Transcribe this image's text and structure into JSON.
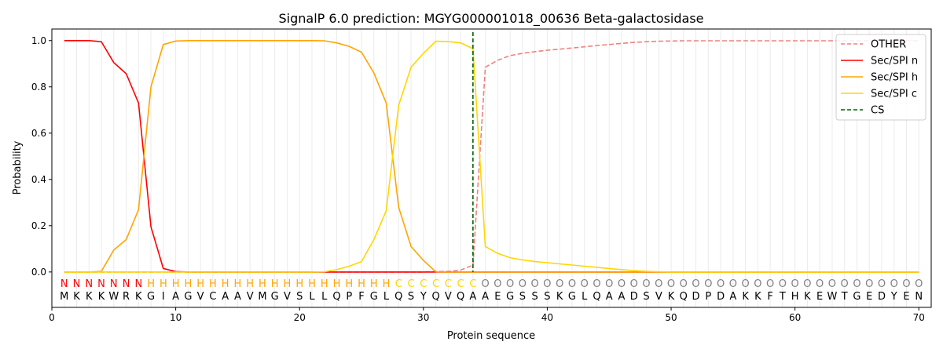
{
  "chart_data": {
    "type": "line",
    "title": "SignalP 6.0 prediction: MGYG000001018_00636 Beta-galactosidase",
    "xlabel": "Protein sequence",
    "ylabel": "Probability",
    "xlim": [
      0,
      71
    ],
    "ylim": [
      -0.153,
      1.05
    ],
    "xticks": [
      0,
      10,
      20,
      30,
      40,
      50,
      60,
      70
    ],
    "yticks": [
      0.0,
      0.2,
      0.4,
      0.6,
      0.8,
      1.0
    ],
    "ytick_labels": [
      "0.0",
      "0.2",
      "0.4",
      "0.6",
      "0.8",
      "1.0"
    ],
    "legend_position": "top-right",
    "sequence": [
      "M",
      "K",
      "K",
      "K",
      "W",
      "R",
      "K",
      "G",
      "I",
      "A",
      "G",
      "V",
      "C",
      "A",
      "A",
      "V",
      "M",
      "G",
      "V",
      "S",
      "L",
      "L",
      "Q",
      "P",
      "F",
      "G",
      "L",
      "Q",
      "S",
      "Y",
      "Q",
      "V",
      "Q",
      "A",
      "A",
      "E",
      "G",
      "S",
      "S",
      "S",
      "K",
      "G",
      "L",
      "Q",
      "A",
      "A",
      "D",
      "S",
      "V",
      "K",
      "Q",
      "D",
      "P",
      "D",
      "A",
      "K",
      "K",
      "F",
      "T",
      "H",
      "K",
      "E",
      "W",
      "T",
      "G",
      "E",
      "D",
      "Y",
      "E",
      "N"
    ],
    "labels": [
      "N",
      "N",
      "N",
      "N",
      "N",
      "N",
      "N",
      "H",
      "H",
      "H",
      "H",
      "H",
      "H",
      "H",
      "H",
      "H",
      "H",
      "H",
      "H",
      "H",
      "H",
      "H",
      "H",
      "H",
      "H",
      "H",
      "H",
      "C",
      "C",
      "C",
      "C",
      "C",
      "C",
      "C",
      "O",
      "O",
      "O",
      "O",
      "O",
      "O",
      "O",
      "O",
      "O",
      "O",
      "O",
      "O",
      "O",
      "O",
      "O",
      "O",
      "O",
      "O",
      "O",
      "O",
      "O",
      "O",
      "O",
      "O",
      "O",
      "O",
      "O",
      "O",
      "O",
      "O",
      "O",
      "O",
      "O",
      "O",
      "O",
      "O"
    ],
    "label_colors": {
      "N": "#ff0000",
      "H": "#ffa500",
      "C": "#ffd700",
      "O": "#808080"
    },
    "cs_position": 34,
    "series": [
      {
        "name": "OTHER",
        "color": "#f08080",
        "dash": true,
        "values": [
          0,
          0,
          0,
          0,
          0,
          0,
          0,
          0,
          0,
          0,
          0,
          0,
          0,
          0,
          0,
          0,
          0,
          0,
          0,
          0,
          0,
          0,
          0,
          0,
          0,
          0,
          0,
          0,
          0,
          0,
          0.002,
          0.003,
          0.008,
          0.03,
          0.885,
          0.915,
          0.935,
          0.945,
          0.952,
          0.958,
          0.963,
          0.968,
          0.973,
          0.979,
          0.983,
          0.988,
          0.992,
          0.995,
          0.997,
          0.998,
          0.999,
          0.999,
          0.999,
          0.999,
          0.999,
          0.999,
          0.999,
          0.999,
          0.999,
          0.999,
          0.999,
          0.999,
          0.999,
          0.999,
          0.999,
          0.999,
          0.999,
          0.999,
          0.999,
          0.999
        ]
      },
      {
        "name": "Sec/SPI n",
        "color": "#ff0000",
        "dash": false,
        "values": [
          1,
          1,
          1,
          0.995,
          0.905,
          0.857,
          0.73,
          0.195,
          0.015,
          0.002,
          0,
          0,
          0,
          0,
          0,
          0,
          0,
          0,
          0,
          0,
          0,
          0,
          0,
          0,
          0,
          0,
          0,
          0,
          0,
          0,
          0,
          0,
          0,
          0,
          0,
          0,
          0,
          0,
          0,
          0,
          0,
          0,
          0,
          0,
          0,
          0,
          0,
          0,
          0,
          0,
          0,
          0,
          0,
          0,
          0,
          0,
          0,
          0,
          0,
          0,
          0,
          0,
          0,
          0,
          0,
          0,
          0,
          0,
          0,
          0
        ]
      },
      {
        "name": "Sec/SPI h",
        "color": "#ffa500",
        "dash": false,
        "values": [
          0,
          0,
          0,
          0.003,
          0.095,
          0.14,
          0.27,
          0.8,
          0.983,
          0.998,
          1,
          1,
          1,
          1,
          1,
          1,
          1,
          1,
          1,
          1,
          1,
          0.999,
          0.99,
          0.975,
          0.95,
          0.86,
          0.73,
          0.28,
          0.11,
          0.05,
          0.001,
          0,
          0,
          0,
          0,
          0,
          0,
          0,
          0,
          0,
          0,
          0,
          0,
          0,
          0,
          0,
          0,
          0,
          0,
          0,
          0,
          0,
          0,
          0,
          0,
          0,
          0,
          0,
          0,
          0,
          0,
          0,
          0,
          0,
          0,
          0,
          0,
          0,
          0,
          0
        ]
      },
      {
        "name": "Sec/SPI c",
        "color": "#ffd700",
        "dash": false,
        "values": [
          0,
          0,
          0,
          0,
          0,
          0,
          0,
          0,
          0,
          0,
          0,
          0,
          0,
          0,
          0,
          0,
          0,
          0,
          0,
          0,
          0,
          0.001,
          0.01,
          0.025,
          0.045,
          0.14,
          0.265,
          0.72,
          0.885,
          0.945,
          0.997,
          0.996,
          0.99,
          0.965,
          0.11,
          0.08,
          0.062,
          0.052,
          0.045,
          0.04,
          0.035,
          0.03,
          0.025,
          0.02,
          0.015,
          0.01,
          0.006,
          0.003,
          0.001,
          0,
          0,
          0,
          0,
          0,
          0,
          0,
          0,
          0,
          0,
          0,
          0,
          0,
          0,
          0,
          0,
          0,
          0,
          0,
          0,
          0
        ]
      }
    ],
    "legend": [
      "OTHER",
      "Sec/SPI n",
      "Sec/SPI h",
      "Sec/SPI c",
      "CS"
    ],
    "cs_color": "#006400"
  }
}
